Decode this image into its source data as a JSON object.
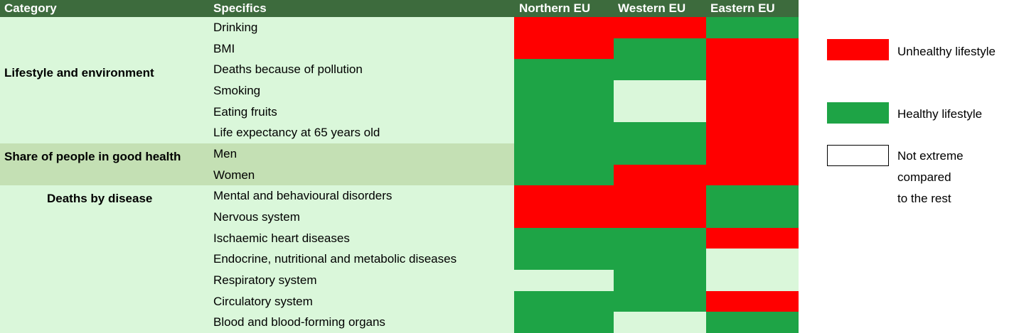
{
  "headers": {
    "category": "Category",
    "specifics": "Specifics",
    "regions": [
      "Northern EU",
      "Western EU",
      "Eastern EU"
    ]
  },
  "categories": [
    {
      "label": "Lifestyle and environment"
    },
    {
      "label": "Share of people in good health"
    },
    {
      "label": "Deaths by disease"
    }
  ],
  "legend": {
    "unhealthy": "Unhealthy lifestyle",
    "healthy": "Healthy lifestyle",
    "neutral_lines": [
      "Not extreme",
      "compared",
      "to the rest"
    ]
  },
  "colors": {
    "header_bg": "#3d6b3d",
    "row_bg": "#daf7da",
    "row_bg_highlight": "#c4e0b4",
    "unhealthy": "#ff0000",
    "healthy": "#1ea446",
    "neutral": "#daf7da"
  },
  "chart_data": {
    "type": "heatmap",
    "x": [
      "Northern EU",
      "Western EU",
      "Eastern EU"
    ],
    "legend": {
      "unhealthy": "Unhealthy lifestyle",
      "healthy": "Healthy lifestyle",
      "neutral": "Not extreme compared to the rest"
    },
    "rows": [
      {
        "category": "Lifestyle and environment",
        "specific": "Drinking",
        "values": [
          "unhealthy",
          "unhealthy",
          "healthy"
        ]
      },
      {
        "category": "Lifestyle and environment",
        "specific": "BMI",
        "values": [
          "unhealthy",
          "healthy",
          "unhealthy"
        ]
      },
      {
        "category": "Lifestyle and environment",
        "specific": "Deaths because of pollution",
        "values": [
          "healthy",
          "healthy",
          "unhealthy"
        ]
      },
      {
        "category": "Lifestyle and environment",
        "specific": "Smoking",
        "values": [
          "healthy",
          "neutral",
          "unhealthy"
        ]
      },
      {
        "category": "Lifestyle and environment",
        "specific": "Eating fruits",
        "values": [
          "healthy",
          "neutral",
          "unhealthy"
        ]
      },
      {
        "category": "Lifestyle and environment",
        "specific": "Life expectancy at 65 years old",
        "values": [
          "healthy",
          "healthy",
          "unhealthy"
        ]
      },
      {
        "category": "Share of people in good health",
        "specific": "Men",
        "values": [
          "healthy",
          "healthy",
          "unhealthy"
        ]
      },
      {
        "category": "Share of people in good health",
        "specific": "Women",
        "values": [
          "healthy",
          "unhealthy",
          "unhealthy"
        ]
      },
      {
        "category": "Deaths by disease",
        "specific": "Mental and behavioural disorders",
        "values": [
          "unhealthy",
          "unhealthy",
          "healthy"
        ]
      },
      {
        "category": "Deaths by disease",
        "specific": "Nervous system",
        "values": [
          "unhealthy",
          "unhealthy",
          "healthy"
        ]
      },
      {
        "category": "Deaths by disease",
        "specific": "Ischaemic heart diseases",
        "values": [
          "healthy",
          "healthy",
          "unhealthy"
        ]
      },
      {
        "category": "Deaths by disease",
        "specific": "Endocrine, nutritional and metabolic diseases",
        "values": [
          "healthy",
          "healthy",
          "neutral"
        ]
      },
      {
        "category": "Deaths by disease",
        "specific": "Respiratory system",
        "values": [
          "neutral",
          "healthy",
          "neutral"
        ]
      },
      {
        "category": "Deaths by disease",
        "specific": "Circulatory system",
        "values": [
          "healthy",
          "healthy",
          "unhealthy"
        ]
      },
      {
        "category": "Deaths by disease",
        "specific": "Blood and blood-forming organs",
        "values": [
          "healthy",
          "neutral",
          "healthy"
        ]
      }
    ]
  }
}
